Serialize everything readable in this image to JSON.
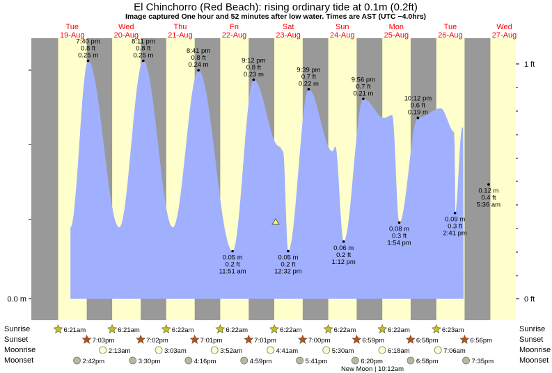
{
  "title": "El Chinchorro (Red Beach): rising  ordinary tide at 0.1m (0.2ft)",
  "subtitle": "Image captured One hour and 52 minutes after low water. Times are AST (UTC −4.0hrs)",
  "colors": {
    "night": "#999999",
    "day": "#ffffcc",
    "tide": "#a0b0ff",
    "day_header": "#ff0000",
    "text": "#000000"
  },
  "days": [
    {
      "dow": "Tue",
      "date": "19-Aug"
    },
    {
      "dow": "Wed",
      "date": "20-Aug"
    },
    {
      "dow": "Thu",
      "date": "21-Aug"
    },
    {
      "dow": "Fri",
      "date": "22-Aug"
    },
    {
      "dow": "Sat",
      "date": "23-Aug"
    },
    {
      "dow": "Sun",
      "date": "24-Aug"
    },
    {
      "dow": "Mon",
      "date": "25-Aug"
    },
    {
      "dow": "Tue",
      "date": "26-Aug"
    },
    {
      "dow": "Wed",
      "date": "27-Aug"
    }
  ],
  "axes": {
    "left_zero": "0.0 m",
    "right_top": "1 ft",
    "right_zero": "0 ft"
  },
  "chart_data": {
    "type": "area",
    "ylabel_left": "m",
    "ylabel_right": "ft",
    "ylim_m": [
      0,
      0.33
    ],
    "high_tides": [
      {
        "day": 0,
        "time": "7:40 pm",
        "ft": "0.8 ft",
        "m": "0.25 m",
        "value": 0.25
      },
      {
        "day": 1,
        "time": "8:11 pm",
        "ft": "0.8 ft",
        "m": "0.25 m",
        "value": 0.25
      },
      {
        "day": 2,
        "time": "8:41 pm",
        "ft": "0.8 ft",
        "m": "0.24 m",
        "value": 0.24
      },
      {
        "day": 3,
        "time": "9:12 pm",
        "ft": "0.8 ft",
        "m": "0.23 m",
        "value": 0.23
      },
      {
        "day": 4,
        "time": "9:39 pm",
        "ft": "0.7 ft",
        "m": "0.22 m",
        "value": 0.22
      },
      {
        "day": 5,
        "time": "9:56 pm",
        "ft": "0.7 ft",
        "m": "0.21 m",
        "value": 0.21
      },
      {
        "day": 6,
        "time": "10:12 pm",
        "ft": "0.6 ft",
        "m": "0.19 m",
        "value": 0.19
      }
    ],
    "low_tides": [
      {
        "day": 3,
        "time": "11:51 am",
        "ft": "0.2 ft",
        "m": "0.05 m",
        "value": 0.05
      },
      {
        "day": 4,
        "time": "12:32 pm",
        "ft": "0.2 ft",
        "m": "0.05 m",
        "value": 0.05
      },
      {
        "day": 5,
        "time": "1:12 pm",
        "ft": "0.2 ft",
        "m": "0.06 m",
        "value": 0.06
      },
      {
        "day": 6,
        "time": "1:54 pm",
        "ft": "0.3 ft",
        "m": "0.08 m",
        "value": 0.08
      },
      {
        "day": 7,
        "time": "2:41 pm",
        "ft": "0.3 ft",
        "m": "0.09 m",
        "value": 0.09
      },
      {
        "day": 8,
        "time": "5:36 am",
        "ft": "0.4 ft",
        "m": "0.12 m",
        "value": 0.12
      }
    ],
    "current": {
      "value": 0.1,
      "description": "rising ordinary tide at 0.1m (0.2ft)"
    }
  },
  "legend_labels": {
    "sunrise": "Sunrise",
    "sunset": "Sunset",
    "moonrise": "Moonrise",
    "moonset": "Moonset"
  },
  "sunrise": [
    "6:21am",
    "6:21am",
    "6:22am",
    "6:22am",
    "6:22am",
    "6:22am",
    "6:22am",
    "6:23am"
  ],
  "sunset": [
    "7:03pm",
    "7:02pm",
    "7:01pm",
    "7:01pm",
    "7:00pm",
    "6:59pm",
    "6:58pm",
    "6:56pm"
  ],
  "moonrise": [
    "2:13am",
    "3:03am",
    "3:52am",
    "4:41am",
    "5:30am",
    "6:18am",
    "7:06am"
  ],
  "moonset": [
    "2:42pm",
    "3:30pm",
    "4:16pm",
    "4:59pm",
    "5:41pm",
    "6:20pm",
    "6:58pm",
    "7:35pm"
  ],
  "new_moon_note": "New Moon | 10:12am"
}
